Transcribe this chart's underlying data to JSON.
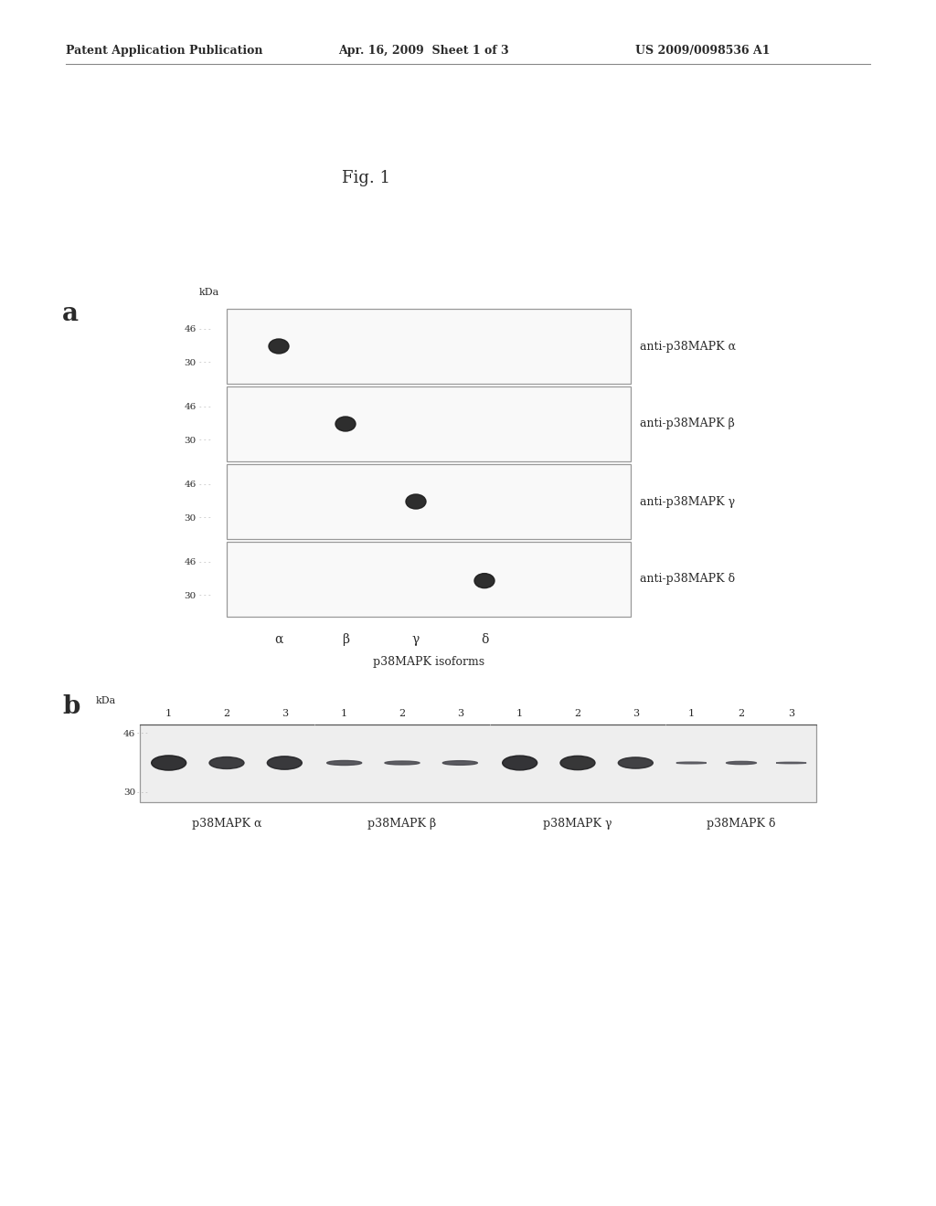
{
  "fig_title": "Fig. 1",
  "patent_header_left": "Patent Application Publication",
  "patent_header_mid": "Apr. 16, 2009  Sheet 1 of 3",
  "patent_header_right": "US 2009/0098536 A1",
  "panel_a_label": "a",
  "panel_b_label": "b",
  "kda_label": "kDa",
  "isoforms": [
    "α",
    "β",
    "γ",
    "δ"
  ],
  "isoforms_label": "p38MAPK isoforms",
  "antibody_labels": [
    "anti-p38MAPK α",
    "anti-p38MAPK β",
    "anti-p38MAPK γ",
    "anti-p38MAPK δ"
  ],
  "panel_b_labels": [
    "p38MAPK α",
    "p38MAPK β",
    "p38MAPK γ",
    "p38MAPK δ"
  ],
  "bg_color": "#ffffff",
  "text_color": "#2a2a2a",
  "box_edge_color": "#999999",
  "box_face_color": "#f9f9f9",
  "dot_color": "#1c1c1c",
  "dash_color": "#aaaaaa"
}
